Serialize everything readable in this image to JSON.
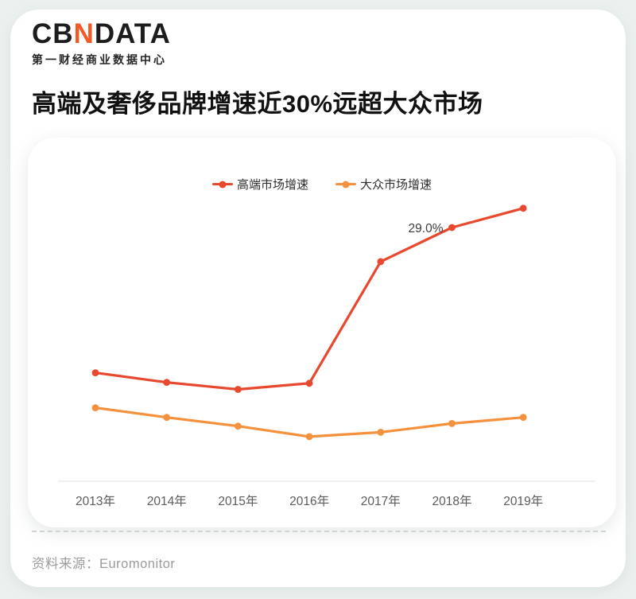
{
  "page": {
    "background_color": "#ecf1ef",
    "card_color": "#ffffff"
  },
  "header": {
    "logo": {
      "part1": "CB",
      "part2": "N",
      "part3": "DATA",
      "accent_color": "#f15a24",
      "subtitle": "第一财经商业数据中心"
    },
    "title": "高端及奢侈品牌增速近30%远超大众市场"
  },
  "chart_data": {
    "type": "line",
    "categories": [
      "2013年",
      "2014年",
      "2015年",
      "2016年",
      "2017年",
      "2018年",
      "2019年"
    ],
    "series": [
      {
        "name": "高端市场增速",
        "color": "#e8482e",
        "values": [
          12.4,
          11.3,
          10.5,
          11.2,
          25.1,
          29.0,
          31.2
        ]
      },
      {
        "name": "大众市场增速",
        "color": "#f5913d",
        "values": [
          8.4,
          7.3,
          6.3,
          5.1,
          5.6,
          6.6,
          7.3
        ]
      }
    ],
    "unit": "%",
    "ylim": [
      0,
      33
    ],
    "grid": false,
    "legend_position": "top",
    "axis_line_color": "#ececec",
    "tick_color": "#5c5c5c",
    "annotation_color": "#3c3c3c",
    "annotations": [
      {
        "series_index": 0,
        "category_index": 5,
        "text": "29.0%"
      }
    ]
  },
  "footer": {
    "source": "资料来源：Euromonitor"
  }
}
